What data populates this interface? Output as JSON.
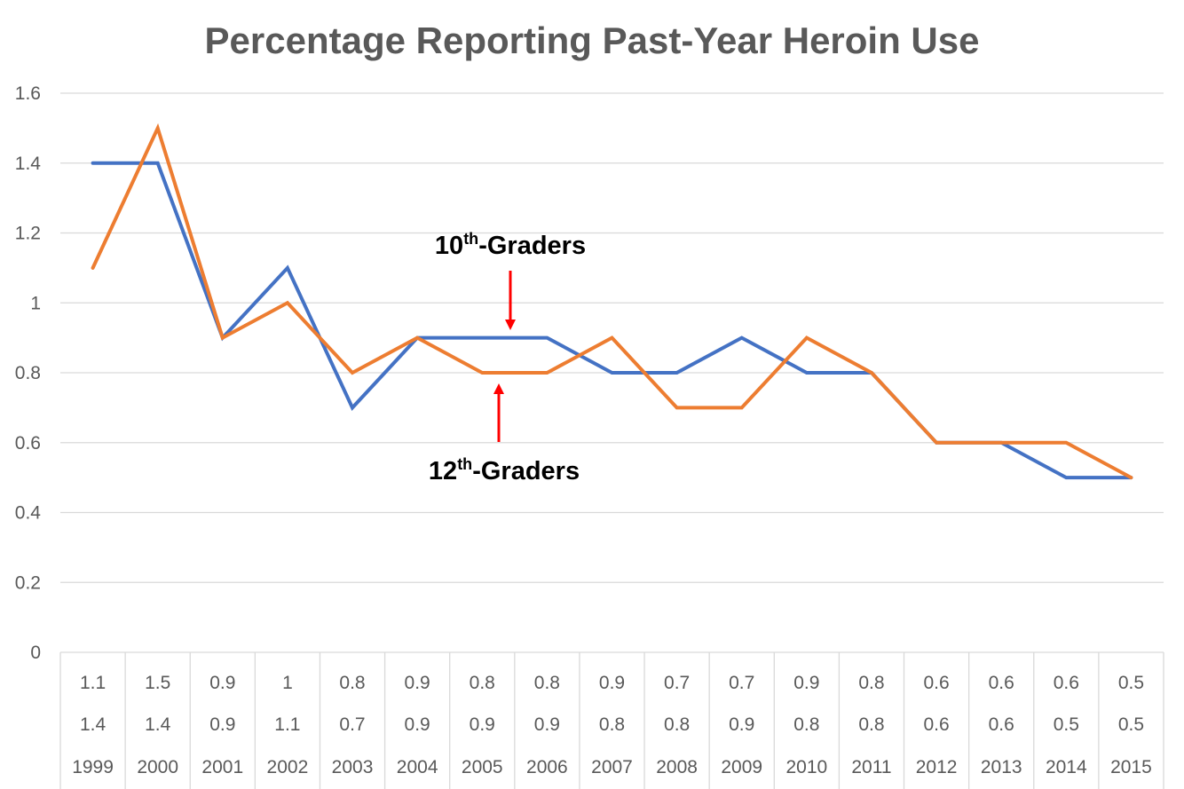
{
  "chart_data": {
    "type": "line",
    "title": "Percentage Reporting Past-Year Heroin Use",
    "xlabel": "",
    "ylabel": "",
    "ylim": [
      0,
      1.6
    ],
    "yticks": [
      "0",
      "0.2",
      "0.4",
      "0.6",
      "0.8",
      "1",
      "1.2",
      "1.4",
      "1.6"
    ],
    "categories": [
      "1999",
      "2000",
      "2001",
      "2002",
      "2003",
      "2004",
      "2005",
      "2006",
      "2007",
      "2008",
      "2009",
      "2010",
      "2011",
      "2012",
      "2013",
      "2014",
      "2015"
    ],
    "grid": true,
    "data_table": true,
    "series": [
      {
        "key": "orange",
        "color": "#ED7D31",
        "values": [
          1.1,
          1.5,
          0.9,
          1,
          0.8,
          0.9,
          0.8,
          0.8,
          0.9,
          0.7,
          0.7,
          0.9,
          0.8,
          0.6,
          0.6,
          0.6,
          0.5
        ],
        "table_labels": [
          "1.1",
          "1.5",
          "0.9",
          "1",
          "0.8",
          "0.9",
          "0.8",
          "0.8",
          "0.9",
          "0.7",
          "0.7",
          "0.9",
          "0.8",
          "0.6",
          "0.6",
          "0.6",
          "0.5"
        ]
      },
      {
        "key": "blue",
        "color": "#4472C4",
        "values": [
          1.4,
          1.4,
          0.9,
          1.1,
          0.7,
          0.9,
          0.9,
          0.9,
          0.8,
          0.8,
          0.9,
          0.8,
          0.8,
          0.6,
          0.6,
          0.5,
          0.5
        ],
        "table_labels": [
          "1.4",
          "1.4",
          "0.9",
          "1.1",
          "0.7",
          "0.9",
          "0.9",
          "0.9",
          "0.8",
          "0.8",
          "0.9",
          "0.8",
          "0.8",
          "0.6",
          "0.6",
          "0.5",
          "0.5"
        ]
      }
    ],
    "annotations": [
      {
        "id": "tenth",
        "base": "10",
        "sup": "th",
        "rest": "-Graders",
        "arrow_color": "#FF0000",
        "points_to": "blue"
      },
      {
        "id": "twelfth",
        "base": "12",
        "sup": "th",
        "rest": "-Graders",
        "arrow_color": "#FF0000",
        "points_to": "orange"
      }
    ]
  }
}
